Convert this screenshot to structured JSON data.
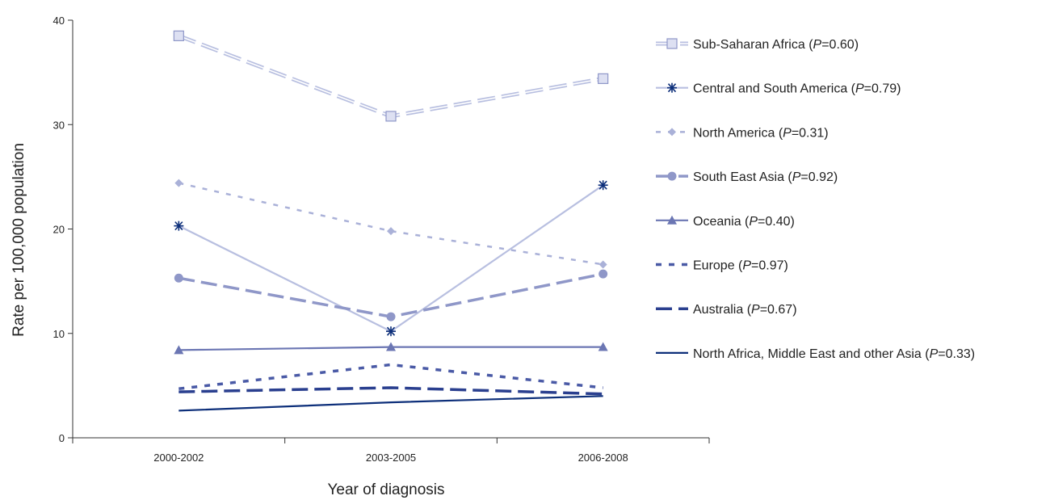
{
  "chart_data": {
    "type": "line",
    "xlabel": "Year of diagnosis",
    "ylabel": "Rate per 100,000 population",
    "categories": [
      "2000-2002",
      "2003-2005",
      "2006-2008"
    ],
    "ylim": [
      0,
      40
    ],
    "yticks": [
      0,
      10,
      20,
      30,
      40
    ],
    "grid": false,
    "legend_position": "right",
    "series": [
      {
        "name": "Sub-Saharan Africa",
        "p_value": "0.60",
        "values": [
          38.5,
          30.8,
          34.4
        ],
        "color": "#b8bfe0",
        "line": "dash-double",
        "marker": "square"
      },
      {
        "name": "Central and South America",
        "p_value": "0.79",
        "values": [
          20.3,
          10.2,
          24.2
        ],
        "color": "#b8bfe0",
        "line": "solid",
        "marker": "asterisk"
      },
      {
        "name": "North America",
        "p_value": "0.31",
        "values": [
          24.4,
          19.8,
          16.6
        ],
        "color": "#aab1d8",
        "line": "dotted",
        "marker": "diamond"
      },
      {
        "name": "South East Asia",
        "p_value": "0.92",
        "values": [
          15.3,
          11.6,
          15.7
        ],
        "color": "#8f97c8",
        "line": "dashed-thick",
        "marker": "circle"
      },
      {
        "name": "Oceania",
        "p_value": "0.40",
        "values": [
          8.4,
          8.7,
          8.7
        ],
        "color": "#6b76b3",
        "line": "solid",
        "marker": "triangle"
      },
      {
        "name": "Europe",
        "p_value": "0.97",
        "values": [
          4.7,
          7.0,
          4.8
        ],
        "color": "#4a5aa6",
        "line": "dotted-thick",
        "marker": "none"
      },
      {
        "name": "Australia",
        "p_value": "0.67",
        "values": [
          4.4,
          4.8,
          4.2
        ],
        "color": "#2a3f8f",
        "line": "dashed-thick",
        "marker": "none"
      },
      {
        "name": "North Africa, Middle East and other Asia",
        "p_value": "0.33",
        "values": [
          2.6,
          3.4,
          4.0
        ],
        "color": "#0d2f7a",
        "line": "solid",
        "marker": "none"
      }
    ]
  }
}
